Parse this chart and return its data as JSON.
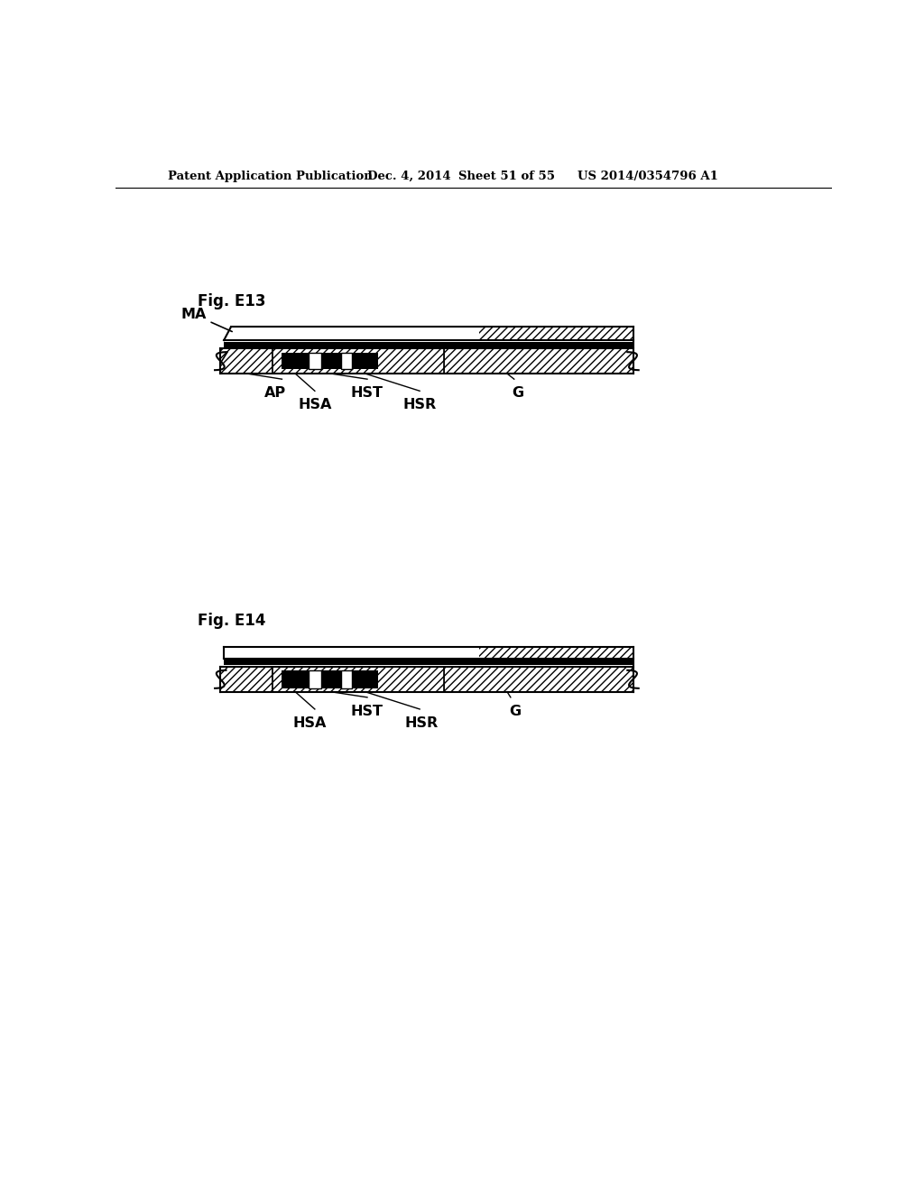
{
  "bg_color": "#ffffff",
  "header_text": "Patent Application Publication",
  "header_date": "Dec. 4, 2014",
  "header_sheet": "Sheet 51 of 55",
  "header_patent": "US 2014/0354796 A1",
  "fig1_label": "Fig. E13",
  "fig2_label": "Fig. E14"
}
